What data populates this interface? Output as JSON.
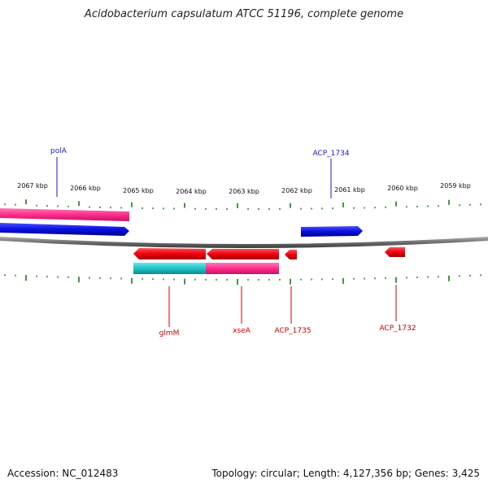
{
  "title": "Acidobacterium capsulatum ATCC 51196, complete genome",
  "footer": {
    "accession": "Accession: NC_012483",
    "stats": "Topology: circular; Length: 4,127,356 bp; Genes: 3,425"
  },
  "colors": {
    "forward_gene": "#ff2d8a",
    "forward_cds": "#0a10e0",
    "reverse_gene": "#e8001a",
    "reverse_cds_a": "#20c4c8",
    "reverse_cds_b": "#ff2d8a",
    "backbone": "#7f7f7f",
    "ticks": "#1a7a1a",
    "forward_label": "#1a1ad6",
    "reverse_label": "#cc0000"
  },
  "kbp_labels": [
    "2067 kbp",
    "2066 kbp",
    "2065 kbp",
    "2064 kbp",
    "2063 kbp",
    "2062 kbp",
    "2061 kbp",
    "2060 kbp",
    "2059 kbp"
  ],
  "forward_labels": [
    "polA",
    "ACP_1734"
  ],
  "reverse_labels": [
    "glmM",
    "xseA",
    "ACP_1735",
    "ACP_1732"
  ]
}
